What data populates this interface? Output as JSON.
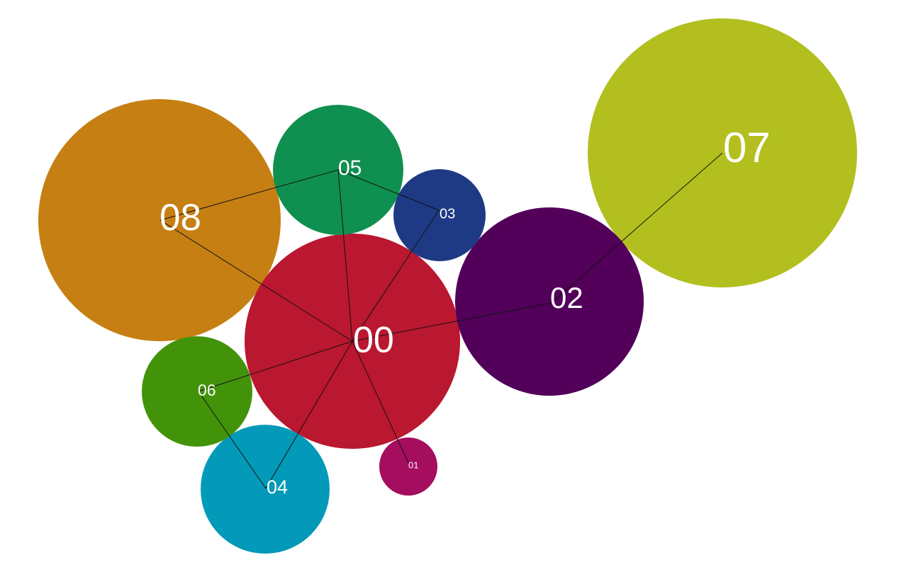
{
  "nodes": [
    {
      "id": "00",
      "label": "00",
      "color": "#BA1730"
    },
    {
      "id": "01",
      "label": "01",
      "color": "#A50D5E"
    },
    {
      "id": "02",
      "label": "02",
      "color": "#52005A"
    },
    {
      "id": "03",
      "label": "03",
      "color": "#1F3A84"
    },
    {
      "id": "04",
      "label": "04",
      "color": "#029AB8"
    },
    {
      "id": "05",
      "label": "05",
      "color": "#109050"
    },
    {
      "id": "06",
      "label": "06",
      "color": "#43930A"
    },
    {
      "id": "07",
      "label": "07",
      "color": "#B2BF1E"
    },
    {
      "id": "08",
      "label": "08",
      "color": "#C67F12"
    }
  ],
  "edges": [
    [
      "00",
      "08"
    ],
    [
      "00",
      "05"
    ],
    [
      "00",
      "03"
    ],
    [
      "00",
      "02"
    ],
    [
      "00",
      "06"
    ],
    [
      "00",
      "04"
    ],
    [
      "00",
      "01"
    ],
    [
      "05",
      "08"
    ],
    [
      "05",
      "03"
    ],
    [
      "02",
      "07"
    ],
    [
      "06",
      "04"
    ]
  ]
}
